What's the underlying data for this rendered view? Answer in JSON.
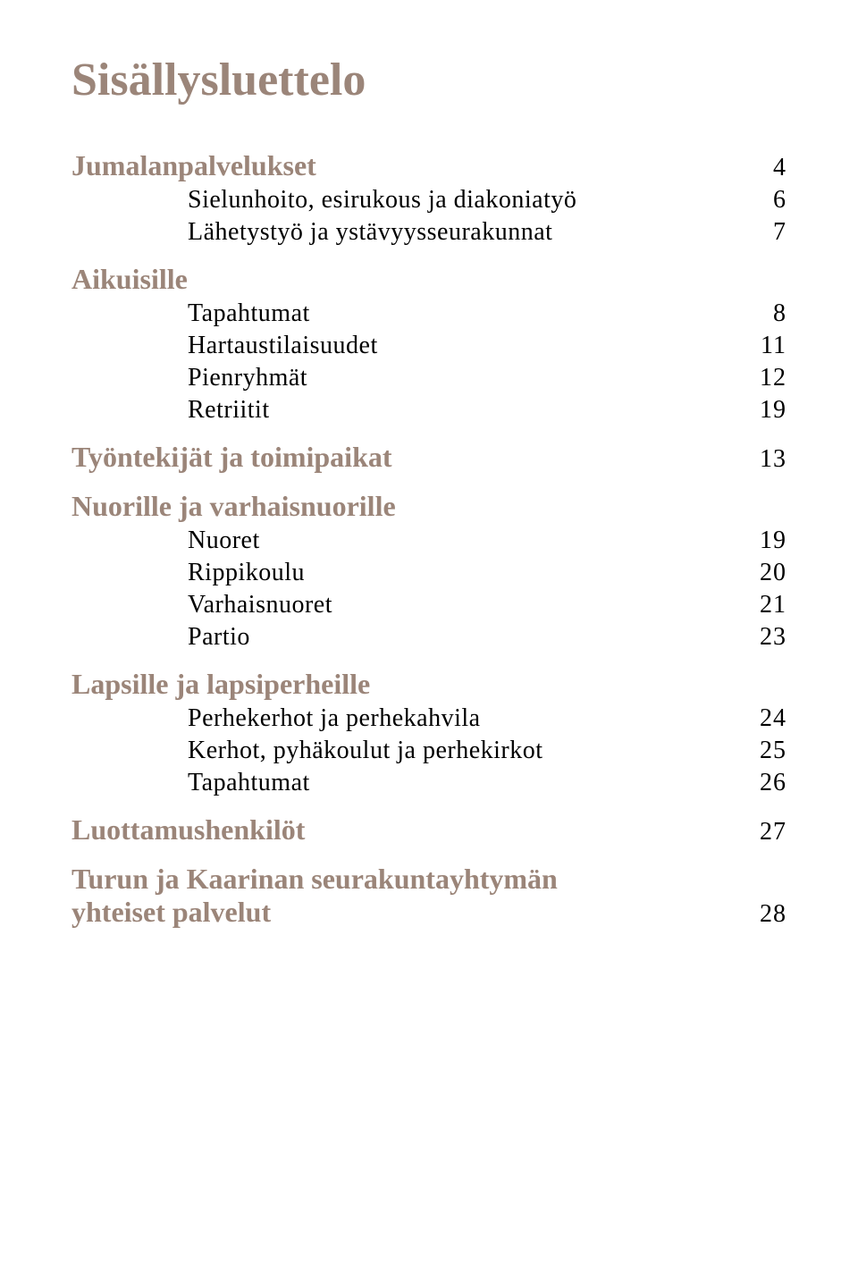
{
  "colors": {
    "heading": "#9b8579",
    "body": "#000000",
    "background": "#ffffff"
  },
  "typography": {
    "title_fontsize_pt": 39,
    "section_fontsize_pt": 24,
    "body_fontsize_pt": 21,
    "font_family": "Georgia, serif"
  },
  "title": "Sisällysluettelo",
  "sections": [
    {
      "heading": "Jumalanpalvelukset",
      "heading_page": "4",
      "items": [
        {
          "label": "Sielunhoito, esirukous ja diakoniatyö",
          "page": "6"
        },
        {
          "label": "Lähetystyö ja ystävyysseurakunnat",
          "page": "7"
        }
      ]
    },
    {
      "heading": "Aikuisille",
      "heading_page": null,
      "items": [
        {
          "label": "Tapahtumat",
          "page": "8"
        },
        {
          "label": "Hartaustilaisuudet",
          "page": "11"
        },
        {
          "label": "Pienryhmät",
          "page": "12"
        },
        {
          "label": "Retriitit",
          "page": "19"
        }
      ]
    },
    {
      "heading": "Työntekijät ja toimipaikat",
      "heading_page": "13",
      "items": []
    },
    {
      "heading": "Nuorille ja varhaisnuorille",
      "heading_page": null,
      "items": [
        {
          "label": "Nuoret",
          "page": "19"
        },
        {
          "label": "Rippikoulu",
          "page": "20"
        },
        {
          "label": "Varhaisnuoret",
          "page": "21"
        },
        {
          "label": "Partio",
          "page": "23"
        }
      ]
    },
    {
      "heading": "Lapsille ja lapsiperheille",
      "heading_page": null,
      "items": [
        {
          "label": "Perhekerhot ja perhekahvila",
          "page": "24"
        },
        {
          "label": "Kerhot, pyhäkoulut ja perhekirkot",
          "page": "25"
        },
        {
          "label": "Tapahtumat",
          "page": "26"
        }
      ]
    },
    {
      "heading": "Luottamushenkilöt",
      "heading_page": "27",
      "items": []
    },
    {
      "heading": "Turun ja Kaarinan seurakuntayhtymän",
      "heading_cont": "yhteiset palvelut",
      "heading_page": "28",
      "items": []
    }
  ]
}
